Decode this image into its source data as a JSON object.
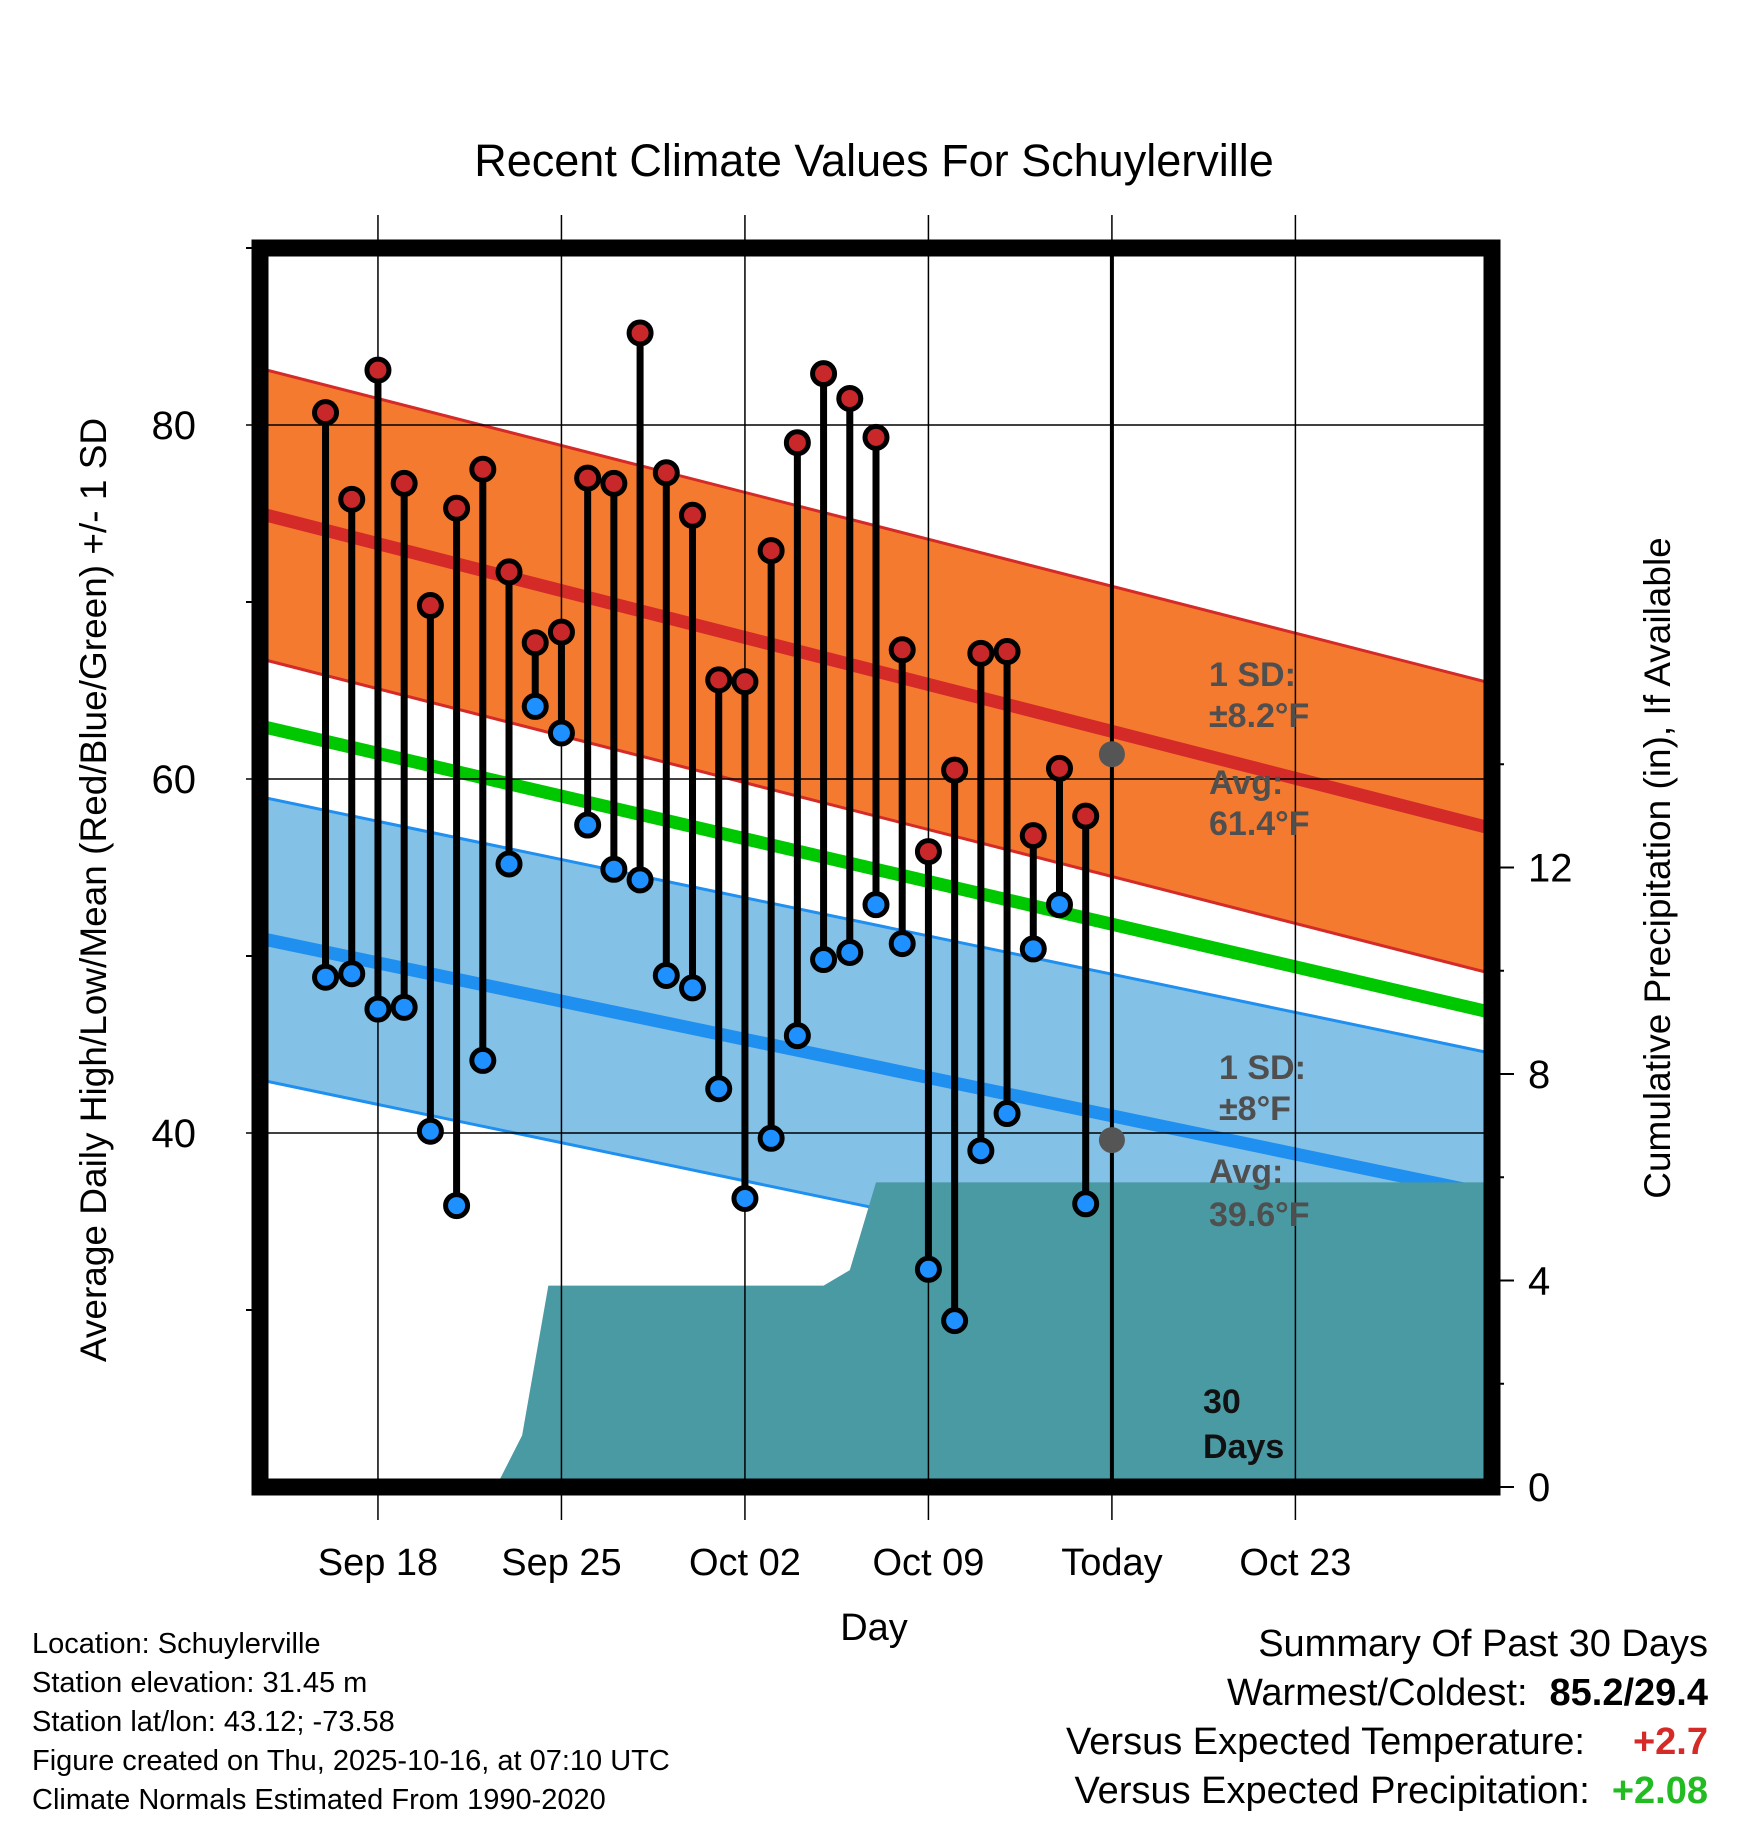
{
  "chart_data": {
    "type": "line",
    "title": "Recent Climate Values For Schuylerville",
    "xlabel": "Day",
    "ylabel": "Average Daily High/Low/Mean (Red/Blue/Green) +/- 1 SD",
    "y2label": "Cumulative Precipitation (in), If Available",
    "ylim": [
      20,
      90
    ],
    "y2lim": [
      0,
      24
    ],
    "y_ticks": [
      "80",
      "60",
      "40"
    ],
    "y2_ticks": [
      "0",
      "4",
      "8",
      "12"
    ],
    "x_range": [
      -32.5,
      14.5
    ],
    "x_ticks": [
      {
        "day": -28,
        "label": "Sep 18"
      },
      {
        "day": -21,
        "label": "Sep 25"
      },
      {
        "day": -14,
        "label": "Oct 02"
      },
      {
        "day": -7,
        "label": "Oct 09"
      },
      {
        "day": 0,
        "label": "Today"
      },
      {
        "day": 7,
        "label": "Oct 23"
      }
    ],
    "normals": {
      "high_mean_start": 75.0,
      "high_mean_end": 57.2,
      "high_sd": 8.2,
      "mean_start": 63.0,
      "mean_end": 46.8,
      "low_mean_start": 51.0,
      "low_mean_end": 36.5,
      "low_sd": 8.0
    },
    "daily": {
      "days": [
        -30,
        -29,
        -28,
        -27,
        -26,
        -25,
        -24,
        -23,
        -22,
        -21,
        -20,
        -19,
        -18,
        -17,
        -16,
        -15,
        -14,
        -13,
        -12,
        -11,
        -10,
        -9,
        -8,
        -7,
        -6,
        -5,
        -4,
        -3,
        -2,
        -1
      ],
      "highs": [
        80.7,
        75.8,
        83.1,
        76.7,
        69.8,
        75.3,
        77.5,
        71.7,
        67.7,
        68.3,
        77.0,
        76.7,
        85.2,
        77.3,
        74.9,
        65.6,
        65.5,
        72.9,
        79.0,
        82.9,
        81.5,
        79.3,
        67.3,
        55.9,
        60.5,
        67.1,
        67.2,
        56.8,
        60.6,
        57.9
      ],
      "lows": [
        48.8,
        49.0,
        47.0,
        47.1,
        40.1,
        35.9,
        44.1,
        55.2,
        64.1,
        62.6,
        57.4,
        54.9,
        54.3,
        48.9,
        48.2,
        42.5,
        36.3,
        39.7,
        45.5,
        49.8,
        50.2,
        52.9,
        50.7,
        32.3,
        29.4,
        39.0,
        41.1,
        50.4,
        52.9,
        36.0
      ]
    },
    "precip": {
      "days": [
        -32.5,
        -24.5,
        -23.5,
        -22.5,
        -21.5,
        -21.0,
        -11.0,
        -10.0,
        -9.0,
        -8.5,
        -8.0,
        14.5
      ],
      "values": [
        0,
        0,
        0,
        1.0,
        3.9,
        3.9,
        3.9,
        4.2,
        5.9,
        5.9,
        5.9,
        5.9
      ]
    },
    "annotations": {
      "high_sd_label": "1 SD:",
      "high_sd_value": "±8.2°F",
      "high_avg_label": "Avg:",
      "high_avg_value": "61.4°F",
      "low_sd_label": "1 SD:",
      "low_sd_value": "±8°F",
      "low_avg_label": "Avg:",
      "low_avg_value": "39.6°F",
      "days_num": "30",
      "days_word": "Days",
      "today_high": 61.4,
      "today_low": 39.6
    },
    "colors": {
      "high_band": "#f47a30",
      "high_line": "#d42a28",
      "mean_line": "#00c800",
      "low_band": "#83c1e6",
      "low_line": "#1f8ff0",
      "precip": "#4a9aa4",
      "high_dot": "#c8282a",
      "low_dot": "#1e90ff",
      "avg_dot": "#555555"
    }
  },
  "info": {
    "location": "Location: Schuylerville",
    "elevation": "Station elevation: 31.45 m",
    "latlon": "Station lat/lon: 43.12; -73.58",
    "created": "Figure created on Thu, 2025-10-16, at 07:10 UTC",
    "normals": "Climate Normals Estimated From 1990-2020"
  },
  "summary": {
    "title": "Summary Of Past 30 Days",
    "warm_cold_label": "Warmest/Coldest:",
    "warm_cold_value": "85.2/29.4",
    "temp_label": "Versus Expected Temperature:",
    "temp_value": "+2.7",
    "temp_color": "#d42a28",
    "precip_label": "Versus Expected Precipitation:",
    "precip_value": "+2.08",
    "precip_color": "#22bb22"
  }
}
